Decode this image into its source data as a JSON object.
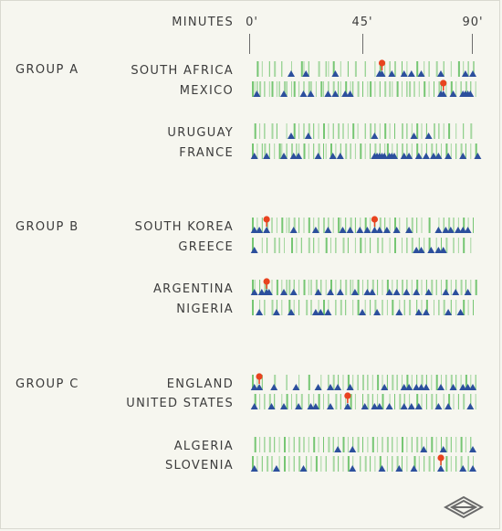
{
  "colors": {
    "background": "#f6f6ef",
    "pass_bar": "#6fc36b",
    "shot_marker": "#2c4f9d",
    "goal_marker": "#e8431f",
    "tick": "#6c6c6c"
  },
  "axis": {
    "title": "MINUTES",
    "ticks": [
      "0'",
      "45'",
      "90'"
    ]
  },
  "chart_data": {
    "type": "scatter",
    "description_of_marks": [
      "green bars = match events",
      "blue triangles = shots",
      "red dots = goals"
    ],
    "xlim": [
      0,
      93
    ],
    "x_ticks": [
      0,
      45,
      90
    ],
    "groups": [
      {
        "label": "GROUP A",
        "matches": [
          {
            "teams": [
              {
                "name": "SOUTH AFRICA",
                "events": [
                  2,
                  4,
                  7,
                  9,
                  12,
                  16,
                  20,
                  21,
                  23,
                  27,
                  30,
                  31,
                  33,
                  36,
                  39,
                  42,
                  46,
                  50,
                  52,
                  54,
                  56,
                  58,
                  61,
                  63,
                  67,
                  70,
                  72,
                  75,
                  78,
                  81,
                  84,
                  86,
                  88,
                  90
                ],
                "shots": [
                  16,
                  22,
                  34,
                  52,
                  57,
                  62,
                  65,
                  69,
                  77,
                  87,
                  90
                ],
                "goals": [
                  53
                ]
              },
              {
                "name": "MEXICO",
                "events": [
                  0,
                  1,
                  2,
                  3,
                  5,
                  7,
                  8,
                  10,
                  11,
                  13,
                  14,
                  16,
                  17,
                  19,
                  21,
                  23,
                  24,
                  26,
                  28,
                  29,
                  31,
                  33,
                  35,
                  36,
                  38,
                  40,
                  41,
                  43,
                  45,
                  47,
                  48,
                  50,
                  52,
                  54,
                  56,
                  57,
                  59,
                  61,
                  63,
                  64,
                  66,
                  68,
                  70,
                  72,
                  74,
                  76,
                  77,
                  79,
                  81,
                  83,
                  85,
                  87,
                  89,
                  91
                ],
                "shots": [
                  2,
                  13,
                  21,
                  24,
                  31,
                  34,
                  38,
                  40,
                  77,
                  82,
                  86,
                  87,
                  88,
                  89
                ],
                "goals": [
                  78
                ]
              }
            ]
          },
          {
            "teams": [
              {
                "name": "URUGUAY",
                "events": [
                  1,
                  3,
                  5,
                  8,
                  10,
                  14,
                  17,
                  19,
                  21,
                  23,
                  25,
                  27,
                  29,
                  31,
                  33,
                  35,
                  37,
                  39,
                  41,
                  43,
                  46,
                  48,
                  50,
                  52,
                  54,
                  56,
                  58,
                  61,
                  63,
                  65,
                  67,
                  69,
                  71,
                  74,
                  76,
                  78,
                  80,
                  83,
                  86,
                  89
                ],
                "shots": [
                  16,
                  23,
                  50,
                  66,
                  72
                ],
                "goals": []
              },
              {
                "name": "FRANCE",
                "events": [
                  0,
                  2,
                  4,
                  5,
                  7,
                  9,
                  11,
                  12,
                  14,
                  16,
                  18,
                  19,
                  21,
                  23,
                  25,
                  27,
                  29,
                  30,
                  32,
                  34,
                  36,
                  38,
                  40,
                  42,
                  44,
                  46,
                  48,
                  50,
                  52,
                  54,
                  55,
                  57,
                  59,
                  61,
                  63,
                  65,
                  67,
                  69,
                  71,
                  73,
                  75,
                  77,
                  79,
                  81,
                  83,
                  85,
                  87,
                  89,
                  91
                ],
                "shots": [
                  1,
                  6,
                  13,
                  17,
                  19,
                  27,
                  33,
                  36,
                  50,
                  51,
                  52,
                  53,
                  54,
                  56,
                  57,
                  58,
                  62,
                  64,
                  68,
                  71,
                  74,
                  76,
                  80,
                  86,
                  92
                ],
                "goals": []
              }
            ]
          }
        ]
      },
      {
        "label": "GROUP B",
        "matches": [
          {
            "teams": [
              {
                "name": "SOUTH KOREA",
                "events": [
                  0,
                  2,
                  4,
                  6,
                  8,
                  10,
                  12,
                  14,
                  15,
                  17,
                  19,
                  21,
                  23,
                  25,
                  27,
                  29,
                  31,
                  33,
                  35,
                  36,
                  38,
                  40,
                  42,
                  44,
                  46,
                  48,
                  50,
                  52,
                  54,
                  56,
                  58,
                  60,
                  63,
                  65,
                  67,
                  69,
                  72,
                  76,
                  78,
                  80,
                  82,
                  84,
                  86,
                  88,
                  90
                ],
                "shots": [
                  1,
                  3,
                  17,
                  26,
                  31,
                  37,
                  40,
                  44,
                  47,
                  52,
                  55,
                  59,
                  64,
                  76,
                  79,
                  81,
                  84,
                  86,
                  88
                ],
                "goals": [
                  6,
                  50
                ]
              },
              {
                "name": "GREECE",
                "events": [
                  0,
                  4,
                  6,
                  9,
                  11,
                  13,
                  16,
                  18,
                  20,
                  23,
                  25,
                  27,
                  30,
                  32,
                  34,
                  37,
                  39,
                  42,
                  44,
                  46,
                  48,
                  51,
                  53,
                  56,
                  58,
                  61,
                  63,
                  65,
                  68,
                  70,
                  72,
                  75,
                  77,
                  79,
                  82,
                  84,
                  86,
                  89
                ],
                "shots": [
                  1,
                  67,
                  69,
                  73,
                  76,
                  78
                ],
                "goals": []
              }
            ]
          },
          {
            "teams": [
              {
                "name": "ARGENTINA",
                "events": [
                  0,
                  1,
                  3,
                  5,
                  6,
                  8,
                  10,
                  12,
                  14,
                  15,
                  17,
                  19,
                  21,
                  23,
                  24,
                  26,
                  28,
                  30,
                  32,
                  34,
                  36,
                  38,
                  40,
                  41,
                  43,
                  45,
                  47,
                  49,
                  51,
                  53,
                  55,
                  57,
                  59,
                  61,
                  63,
                  65,
                  67,
                  69,
                  71,
                  73,
                  75,
                  77,
                  79,
                  81,
                  83,
                  85,
                  87,
                  89,
                  91
                ],
                "shots": [
                  1,
                  4,
                  7,
                  13,
                  17,
                  27,
                  32,
                  36,
                  42,
                  47,
                  49,
                  56,
                  59,
                  63,
                  67,
                  72,
                  79,
                  83,
                  88
                ],
                "goals": [
                  6
                ]
              },
              {
                "name": "NIGERIA",
                "events": [
                  0,
                  3,
                  5,
                  8,
                  10,
                  12,
                  15,
                  17,
                  19,
                  22,
                  24,
                  27,
                  29,
                  31,
                  34,
                  36,
                  38,
                  41,
                  43,
                  46,
                  48,
                  50,
                  53,
                  55,
                  57,
                  60,
                  62,
                  64,
                  67,
                  69,
                  71,
                  74,
                  76,
                  78,
                  81,
                  83,
                  86,
                  88,
                  90
                ],
                "shots": [
                  3,
                  10,
                  16,
                  26,
                  28,
                  31,
                  45,
                  51,
                  60,
                  68,
                  71,
                  80,
                  85
                ],
                "goals": []
              }
            ]
          }
        ]
      },
      {
        "label": "GROUP C",
        "matches": [
          {
            "teams": [
              {
                "name": "ENGLAND",
                "events": [
                  0,
                  2,
                  4,
                  9,
                  14,
                  19,
                  23,
                  28,
                  31,
                  33,
                  35,
                  37,
                  39,
                  41,
                  43,
                  45,
                  47,
                  49,
                  51,
                  53,
                  55,
                  57,
                  59,
                  61,
                  63,
                  65,
                  67,
                  69,
                  71,
                  73,
                  75,
                  77,
                  79,
                  81,
                  83,
                  85,
                  87,
                  89,
                  91
                ],
                "shots": [
                  1,
                  9,
                  18,
                  27,
                  32,
                  35,
                  40,
                  54,
                  62,
                  64,
                  67,
                  69,
                  71,
                  77,
                  82,
                  86,
                  88,
                  90
                ],
                "goals": [
                  3
                ]
              },
              {
                "name": "UNITED STATES",
                "events": [
                  1,
                  3,
                  5,
                  7,
                  9,
                  12,
                  14,
                  16,
                  18,
                  20,
                  23,
                  25,
                  27,
                  29,
                  31,
                  34,
                  36,
                  38,
                  40,
                  42,
                  45,
                  47,
                  49,
                  51,
                  53,
                  56,
                  58,
                  60,
                  62,
                  64,
                  67,
                  69,
                  71,
                  73,
                  75,
                  78,
                  80,
                  82,
                  84,
                  86,
                  89,
                  91
                ],
                "shots": [
                  1,
                  8,
                  13,
                  19,
                  24,
                  26,
                  32,
                  39,
                  46,
                  50,
                  52,
                  56,
                  62,
                  65,
                  68,
                  76,
                  80,
                  89
                ],
                "goals": [
                  39
                ]
              }
            ]
          },
          {
            "teams": [
              {
                "name": "ALGERIA",
                "events": [
                  1,
                  3,
                  5,
                  7,
                  9,
                  11,
                  13,
                  15,
                  17,
                  19,
                  21,
                  23,
                  25,
                  27,
                  29,
                  31,
                  33,
                  35,
                  37,
                  39,
                  41,
                  43,
                  45,
                  47,
                  49,
                  51,
                  53,
                  55,
                  57,
                  59,
                  61,
                  63,
                  65,
                  67,
                  69,
                  71,
                  73,
                  75,
                  77,
                  79,
                  81,
                  83,
                  85,
                  87,
                  89
                ],
                "shots": [
                  35,
                  41,
                  70,
                  78,
                  90
                ],
                "goals": []
              },
              {
                "name": "SLOVENIA",
                "events": [
                  0,
                  2,
                  4,
                  6,
                  8,
                  11,
                  13,
                  15,
                  17,
                  19,
                  22,
                  24,
                  26,
                  28,
                  30,
                  33,
                  35,
                  37,
                  39,
                  41,
                  44,
                  46,
                  48,
                  50,
                  52,
                  55,
                  57,
                  59,
                  61,
                  63,
                  66,
                  68,
                  70,
                  72,
                  74,
                  77,
                  79,
                  81,
                  83,
                  85,
                  88,
                  90
                ],
                "shots": [
                  1,
                  10,
                  21,
                  41,
                  53,
                  60,
                  66,
                  86,
                  90
                ],
                "goals": [
                  77
                ]
              }
            ]
          }
        ]
      }
    ]
  }
}
